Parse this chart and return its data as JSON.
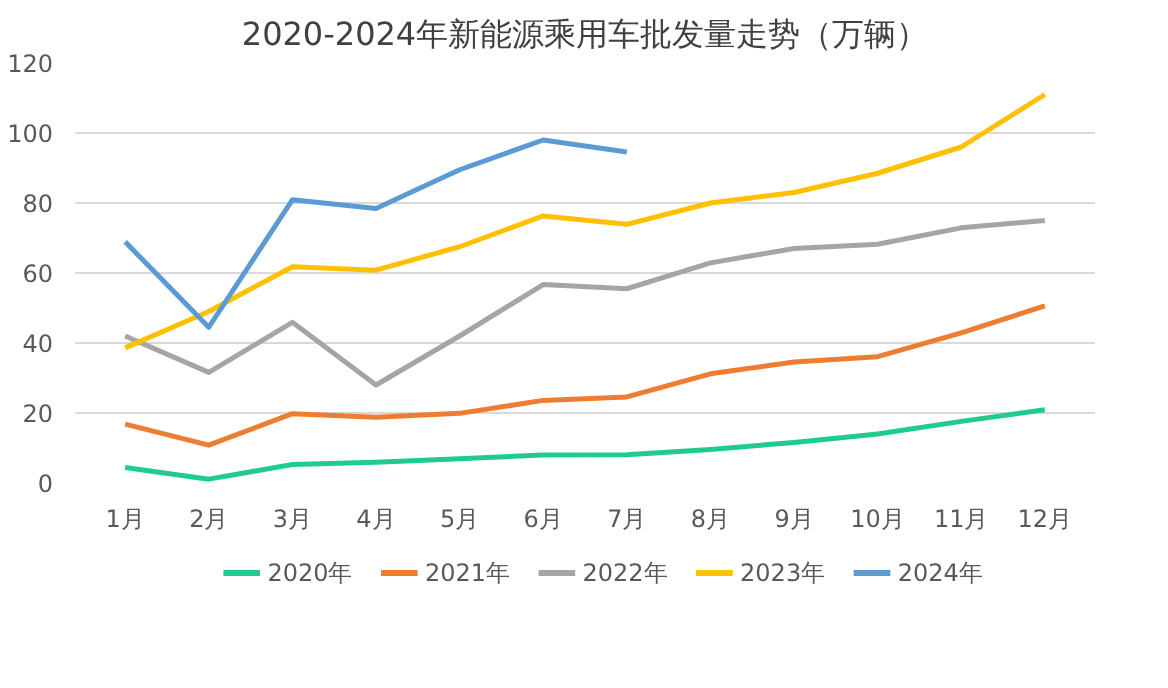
{
  "chart_data": {
    "type": "line",
    "title": "2020-2024年新能源乘用车批发量走势（万辆）",
    "categories": [
      "1月",
      "2月",
      "3月",
      "4月",
      "5月",
      "6月",
      "7月",
      "8月",
      "9月",
      "10月",
      "11月",
      "12月"
    ],
    "series": [
      {
        "name": "2020年",
        "color": "#1fcc8c",
        "values": [
          4.4,
          1.1,
          5.3,
          5.9,
          6.9,
          8.0,
          8.1,
          9.6,
          11.6,
          14.0,
          17.6,
          20.9
        ]
      },
      {
        "name": "2021年",
        "color": "#ed7d31",
        "values": [
          16.8,
          10.8,
          19.8,
          18.8,
          19.9,
          23.6,
          24.6,
          31.2,
          34.6,
          36.1,
          42.9,
          50.6
        ]
      },
      {
        "name": "2022年",
        "color": "#a5a5a5",
        "values": [
          42,
          31.6,
          45.9,
          28,
          42,
          56.7,
          55.5,
          62.9,
          67,
          68.2,
          72.9,
          75
        ]
      },
      {
        "name": "2023年",
        "color": "#ffc000",
        "values": [
          38.6,
          49,
          61.8,
          60.8,
          67.5,
          76.3,
          73.9,
          80,
          83,
          88.5,
          96,
          111
        ]
      },
      {
        "name": "2024年",
        "color": "#5b9bd5",
        "values": [
          68.9,
          44.5,
          80.9,
          78.4,
          89.5,
          98.0,
          94.6,
          null,
          null,
          null,
          null,
          null
        ]
      }
    ],
    "ylim": [
      0,
      120
    ],
    "yticks": [
      0,
      20,
      40,
      60,
      80,
      100,
      120
    ],
    "grid": "y",
    "legend": "bottom",
    "line_style": "solid"
  }
}
